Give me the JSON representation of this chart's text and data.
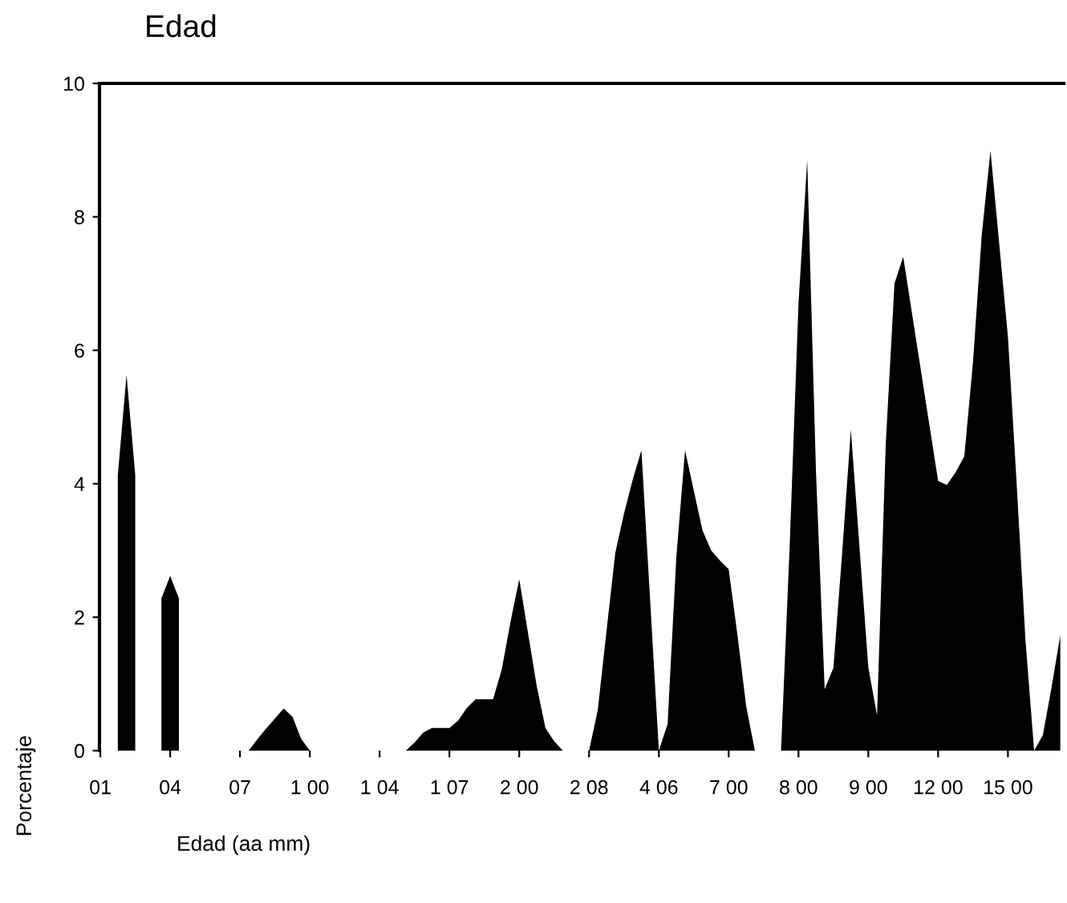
{
  "chart_data": {
    "type": "area",
    "title": "Edad",
    "xlabel": "Edad (aa mm)",
    "ylabel": "Porcentaje",
    "categories": [
      "01",
      null,
      null,
      null,
      null,
      null,
      null,
      null,
      "04",
      null,
      null,
      null,
      null,
      null,
      null,
      null,
      "07",
      null,
      null,
      null,
      null,
      null,
      null,
      null,
      "1 00",
      null,
      null,
      null,
      null,
      null,
      null,
      null,
      "1 04",
      null,
      null,
      null,
      null,
      null,
      null,
      null,
      "1 07",
      null,
      null,
      null,
      null,
      null,
      null,
      null,
      "2 00",
      null,
      null,
      null,
      null,
      null,
      null,
      null,
      "2 08",
      null,
      null,
      null,
      null,
      null,
      null,
      null,
      "4 06",
      null,
      null,
      null,
      null,
      null,
      null,
      null,
      "7 00",
      null,
      null,
      null,
      null,
      null,
      null,
      null,
      "8 00",
      null,
      null,
      null,
      null,
      null,
      null,
      null,
      "9 00",
      null,
      null,
      null,
      null,
      null,
      null,
      null,
      "12 00",
      null,
      null,
      null,
      null,
      null,
      null,
      null,
      "15 00",
      null,
      null,
      null,
      null,
      null,
      null
    ],
    "series": [
      {
        "color": "#000000",
        "values": [
          null,
          null,
          4.13,
          5.63,
          4.13,
          null,
          null,
          2.28,
          2.62,
          2.28,
          null,
          null,
          null,
          null,
          null,
          null,
          null,
          0,
          0.17,
          0.33,
          0.48,
          0.63,
          0.51,
          0.18,
          0,
          null,
          null,
          null,
          null,
          null,
          null,
          null,
          null,
          null,
          null,
          0,
          0.12,
          0.27,
          0.34,
          0.34,
          0.34,
          0.45,
          0.64,
          0.77,
          0.77,
          0.77,
          1.22,
          1.93,
          2.57,
          1.77,
          0.97,
          0.34,
          0.14,
          0,
          null,
          null,
          0,
          0.61,
          1.79,
          2.96,
          3.55,
          4.06,
          4.5,
          2.25,
          0,
          0.4,
          2.9,
          4.5,
          3.9,
          3.3,
          3.0,
          2.85,
          2.72,
          1.74,
          0.67,
          0,
          null,
          null,
          0,
          3.1,
          6.7,
          8.85,
          4.19,
          0.92,
          1.24,
          2.96,
          4.81,
          3.03,
          1.25,
          0.53,
          4.6,
          7.0,
          7.4,
          6.56,
          5.72,
          4.88,
          4.04,
          3.98,
          4.17,
          4.41,
          5.83,
          7.73,
          8.99,
          7.6,
          6.2,
          4.0,
          1.67,
          0,
          0.23,
          0.95,
          1.73
        ]
      }
    ],
    "ylim": [
      0,
      10
    ],
    "yticks": [
      0,
      2,
      4,
      6,
      8,
      10
    ],
    "grid": false,
    "legend": false
  }
}
